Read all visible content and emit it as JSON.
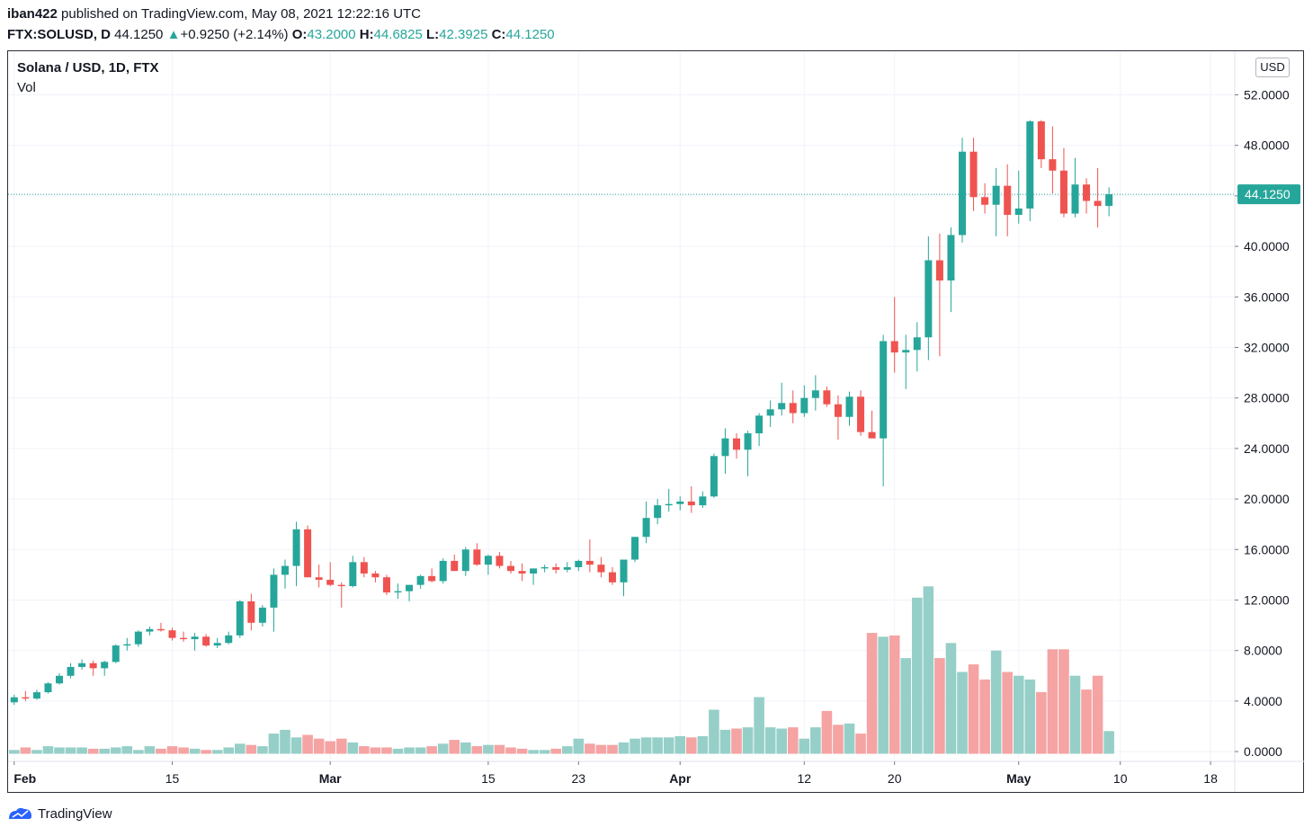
{
  "header": {
    "author": "iban422",
    "published_text": "published on TradingView.com, May 08, 2021 12:22:16 UTC",
    "symbol": "FTX:SOLUSD, D",
    "last": "44.1250",
    "change": "+0.9250 (+2.14%)",
    "change_arrow": "▲",
    "o_label": "O:",
    "o": "43.2000",
    "h_label": "H:",
    "h": "44.6825",
    "l_label": "L:",
    "l": "42.3925",
    "c_label": "C:",
    "c": "44.1250"
  },
  "legend": {
    "title": "Solana / USD, 1D, FTX",
    "volume": "Vol"
  },
  "currency_button": "USD",
  "footer": {
    "brand": "TradingView"
  },
  "colors": {
    "up": "#26a69a",
    "down": "#ef5350",
    "vol_up": "#96cfc8",
    "vol_down": "#f5a3a3",
    "grid": "#f0f3fa"
  },
  "chart_data": {
    "type": "candlestick",
    "y_ticks": [
      "52.0000",
      "48.0000",
      "44.0000",
      "40.0000",
      "36.0000",
      "32.0000",
      "28.0000",
      "24.0000",
      "20.0000",
      "16.0000",
      "12.0000",
      "8.0000",
      "4.0000",
      "0.0000"
    ],
    "y_range": [
      0,
      52
    ],
    "last_price_label": "44.1250",
    "last_price": 44.125,
    "x_ticks": [
      {
        "label": "Feb",
        "day": 0,
        "bold": true
      },
      {
        "label": "15",
        "day": 14,
        "bold": false
      },
      {
        "label": "Mar",
        "day": 28,
        "bold": true
      },
      {
        "label": "15",
        "day": 42,
        "bold": false
      },
      {
        "label": "23",
        "day": 50,
        "bold": false
      },
      {
        "label": "Apr",
        "day": 59,
        "bold": true
      },
      {
        "label": "12",
        "day": 70,
        "bold": false
      },
      {
        "label": "20",
        "day": 78,
        "bold": false
      },
      {
        "label": "May",
        "day": 89,
        "bold": true
      },
      {
        "label": "10",
        "day": 98,
        "bold": false
      },
      {
        "label": "18",
        "day": 106,
        "bold": false
      }
    ],
    "candles": [
      [
        3.9,
        4.5,
        3.7,
        4.3
      ],
      [
        4.3,
        4.8,
        4.0,
        4.2
      ],
      [
        4.2,
        4.9,
        4.1,
        4.7
      ],
      [
        4.7,
        5.5,
        4.6,
        5.4
      ],
      [
        5.4,
        6.2,
        5.3,
        6.0
      ],
      [
        6.0,
        7.0,
        5.8,
        6.7
      ],
      [
        6.7,
        7.3,
        6.5,
        7.0
      ],
      [
        7.0,
        7.2,
        6.0,
        6.6
      ],
      [
        6.6,
        7.2,
        6.0,
        7.1
      ],
      [
        7.1,
        8.5,
        7.0,
        8.4
      ],
      [
        8.4,
        9.0,
        8.0,
        8.5
      ],
      [
        8.5,
        9.6,
        8.3,
        9.5
      ],
      [
        9.5,
        9.9,
        9.2,
        9.7
      ],
      [
        9.7,
        10.2,
        9.5,
        9.6
      ],
      [
        9.6,
        9.8,
        8.8,
        9.0
      ],
      [
        9.0,
        9.5,
        8.7,
        8.9
      ],
      [
        8.9,
        9.4,
        8.0,
        9.1
      ],
      [
        9.1,
        9.3,
        8.3,
        8.4
      ],
      [
        8.4,
        9.0,
        8.2,
        8.6
      ],
      [
        8.6,
        9.5,
        8.5,
        9.2
      ],
      [
        9.2,
        12.0,
        9.0,
        11.9
      ],
      [
        11.9,
        12.5,
        9.6,
        10.2
      ],
      [
        10.2,
        11.6,
        9.9,
        11.4
      ],
      [
        11.4,
        14.5,
        9.5,
        14.0
      ],
      [
        14.0,
        15.2,
        12.9,
        14.7
      ],
      [
        14.7,
        18.2,
        13.1,
        17.6
      ],
      [
        17.6,
        17.9,
        13.8,
        13.8
      ],
      [
        13.8,
        14.8,
        13.0,
        13.6
      ],
      [
        13.6,
        15.0,
        13.1,
        13.2
      ],
      [
        13.2,
        13.4,
        11.4,
        13.1
      ],
      [
        13.1,
        15.5,
        13.0,
        15.0
      ],
      [
        15.0,
        15.4,
        13.8,
        14.1
      ],
      [
        14.1,
        14.3,
        13.4,
        13.8
      ],
      [
        13.8,
        14.0,
        12.4,
        12.6
      ],
      [
        12.6,
        13.3,
        12.1,
        12.7
      ],
      [
        12.7,
        13.2,
        11.9,
        13.2
      ],
      [
        13.2,
        14.0,
        12.9,
        13.9
      ],
      [
        13.9,
        14.5,
        13.4,
        13.5
      ],
      [
        13.5,
        15.3,
        13.3,
        15.1
      ],
      [
        15.1,
        15.6,
        14.4,
        14.3
      ],
      [
        14.3,
        16.2,
        13.9,
        16.0
      ],
      [
        16.0,
        16.5,
        14.7,
        14.8
      ],
      [
        14.8,
        15.6,
        14.0,
        15.5
      ],
      [
        15.5,
        15.8,
        14.5,
        14.7
      ],
      [
        14.7,
        15.1,
        14.1,
        14.3
      ],
      [
        14.3,
        14.9,
        13.5,
        14.1
      ],
      [
        14.1,
        14.5,
        13.2,
        14.5
      ],
      [
        14.5,
        14.8,
        14.2,
        14.6
      ],
      [
        14.6,
        14.9,
        14.1,
        14.4
      ],
      [
        14.4,
        15.0,
        14.2,
        14.6
      ],
      [
        14.6,
        15.2,
        14.3,
        15.1
      ],
      [
        15.1,
        16.8,
        14.2,
        14.8
      ],
      [
        14.8,
        15.4,
        13.8,
        14.2
      ],
      [
        14.2,
        14.6,
        13.2,
        13.4
      ],
      [
        13.4,
        15.2,
        12.3,
        15.2
      ],
      [
        15.2,
        17.0,
        15.0,
        17.0
      ],
      [
        17.0,
        19.8,
        16.5,
        18.5
      ],
      [
        18.5,
        20.0,
        18.0,
        19.5
      ],
      [
        19.5,
        20.8,
        19.0,
        19.6
      ],
      [
        19.6,
        20.2,
        19.1,
        19.8
      ],
      [
        19.8,
        21.0,
        18.9,
        19.5
      ],
      [
        19.5,
        20.6,
        19.3,
        20.2
      ],
      [
        20.2,
        23.6,
        20.1,
        23.4
      ],
      [
        23.4,
        25.6,
        22.0,
        24.8
      ],
      [
        24.8,
        25.2,
        23.2,
        23.9
      ],
      [
        23.9,
        25.4,
        21.8,
        25.2
      ],
      [
        25.2,
        26.8,
        24.2,
        26.6
      ],
      [
        26.6,
        27.8,
        25.7,
        27.1
      ],
      [
        27.1,
        29.2,
        26.6,
        27.6
      ],
      [
        27.6,
        28.6,
        26.0,
        26.8
      ],
      [
        26.8,
        29.0,
        26.5,
        28.0
      ],
      [
        28.0,
        29.8,
        27.0,
        28.6
      ],
      [
        28.6,
        28.9,
        27.3,
        27.5
      ],
      [
        27.5,
        28.2,
        24.7,
        26.5
      ],
      [
        26.5,
        28.5,
        25.8,
        28.1
      ],
      [
        28.1,
        28.6,
        25.0,
        25.3
      ],
      [
        25.3,
        27.0,
        24.9,
        24.8
      ],
      [
        24.8,
        33.0,
        21.0,
        32.5
      ],
      [
        32.5,
        36.0,
        30.0,
        31.6
      ],
      [
        31.6,
        33.0,
        28.7,
        31.8
      ],
      [
        31.8,
        34.0,
        30.1,
        32.8
      ],
      [
        32.8,
        40.8,
        31.0,
        38.9
      ],
      [
        38.9,
        41.0,
        31.3,
        37.3
      ],
      [
        37.3,
        41.5,
        34.8,
        40.9
      ],
      [
        40.9,
        48.6,
        40.3,
        47.5
      ],
      [
        47.5,
        48.6,
        42.8,
        43.9
      ],
      [
        43.9,
        45.0,
        42.6,
        43.3
      ],
      [
        43.3,
        46.2,
        40.8,
        44.8
      ],
      [
        44.8,
        46.5,
        40.8,
        42.5
      ],
      [
        42.5,
        46.0,
        41.8,
        43.0
      ],
      [
        43.0,
        50.0,
        42.0,
        49.9
      ],
      [
        49.9,
        50.0,
        46.2,
        46.9
      ],
      [
        46.9,
        49.5,
        44.2,
        46.0
      ],
      [
        46.0,
        47.8,
        42.3,
        42.6
      ],
      [
        42.6,
        47.0,
        42.3,
        44.9
      ],
      [
        44.9,
        45.4,
        42.6,
        43.6
      ],
      [
        43.6,
        46.2,
        41.5,
        43.2
      ],
      [
        43.2,
        44.6825,
        42.3925,
        44.125
      ]
    ],
    "volume_ticks": [
      "0.0000",
      "4.0000",
      "8.0000",
      "12.0000"
    ],
    "volumes": [
      0.3,
      0.5,
      0.3,
      0.6,
      0.5,
      0.5,
      0.5,
      0.4,
      0.4,
      0.5,
      0.6,
      0.3,
      0.6,
      0.4,
      0.6,
      0.5,
      0.4,
      0.3,
      0.3,
      0.5,
      0.8,
      0.7,
      0.6,
      1.6,
      1.9,
      1.3,
      1.5,
      1.2,
      1.0,
      1.2,
      0.9,
      0.6,
      0.5,
      0.5,
      0.4,
      0.5,
      0.5,
      0.6,
      0.8,
      1.1,
      0.9,
      0.6,
      0.7,
      0.7,
      0.5,
      0.4,
      0.3,
      0.3,
      0.4,
      0.6,
      1.2,
      0.8,
      0.7,
      0.7,
      0.9,
      1.2,
      1.3,
      1.3,
      1.3,
      1.4,
      1.3,
      1.4,
      3.5,
      1.9,
      2.0,
      2.1,
      4.5,
      2.1,
      2.0,
      2.1,
      1.2,
      2.1,
      3.4,
      2.3,
      2.4,
      1.6,
      9.6,
      9.3,
      9.4,
      7.6,
      12.4,
      13.3,
      7.6,
      8.8,
      6.5,
      7.1,
      5.9,
      8.2,
      6.5,
      6.2,
      5.9,
      4.9,
      8.3,
      8.3,
      6.2,
      5.1,
      6.2,
      1.8
    ]
  }
}
